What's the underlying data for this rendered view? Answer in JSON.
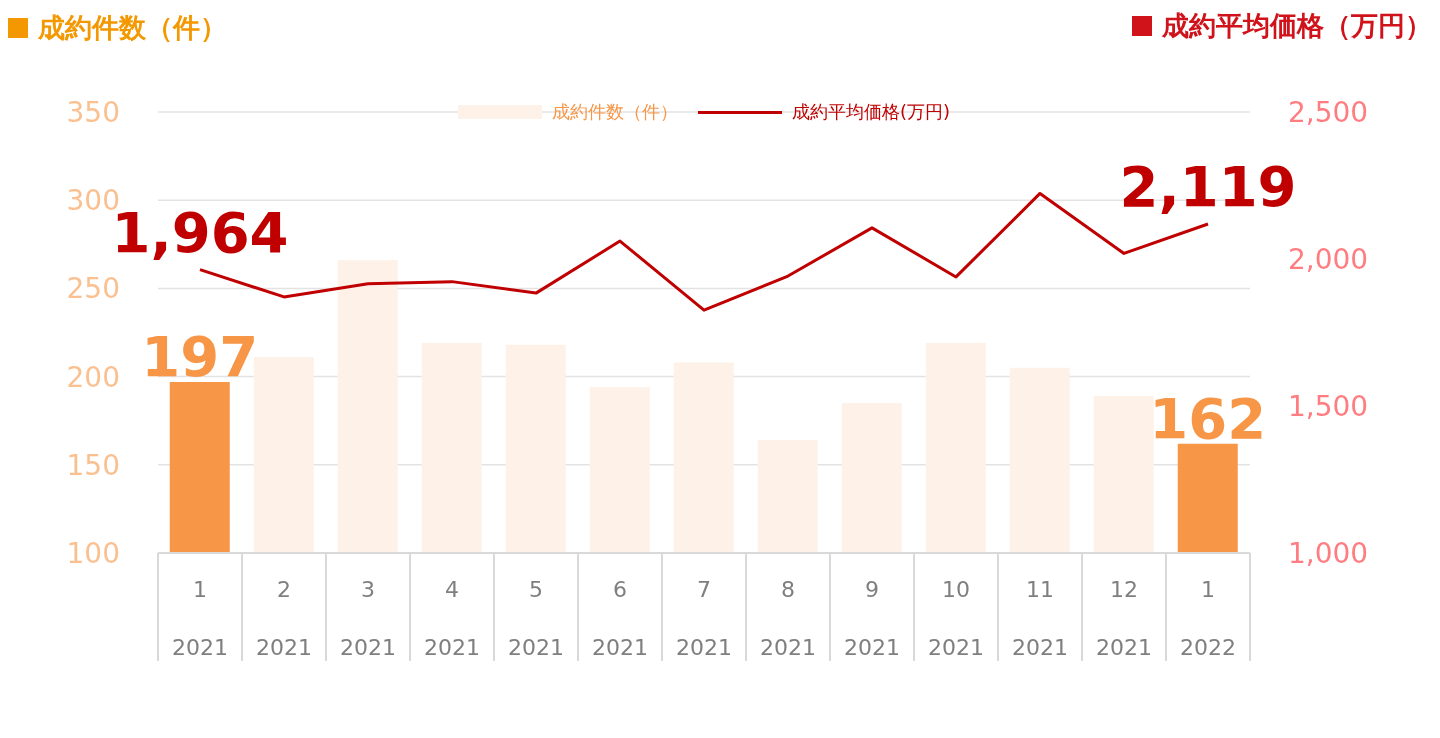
{
  "chart_data": {
    "type": "bar",
    "ylabel": "成約件数（件）",
    "y2label": "成約平均価格（万円）",
    "categories": [
      "1\n2021",
      "2\n2021",
      "3\n2021",
      "4\n2021",
      "5\n2021",
      "6\n2021",
      "7\n2021",
      "8\n2021",
      "9\n2021",
      "10\n2021",
      "11\n2021",
      "12\n2021",
      "1\n2022"
    ],
    "series": [
      {
        "name": "成約件数（件）",
        "color": "#fdf1e8",
        "colors": [
          "#f79646",
          "#fdf1e8",
          "#fdf1e8",
          "#fdf1e8",
          "#fdf1e8",
          "#fdf1e8",
          "#fdf1e8",
          "#fdf1e8",
          "#fdf1e8",
          "#fdf1e8",
          "#fdf1e8",
          "#fdf1e8",
          "#f79646"
        ],
        "values": [
          197,
          211,
          266,
          219,
          218,
          194,
          208,
          164,
          185,
          219,
          205,
          189,
          162
        ],
        "value_labels": [
          "197",
          null,
          null,
          null,
          null,
          null,
          null,
          null,
          null,
          null,
          null,
          null,
          "162"
        ]
      },
      {
        "name": "成約平均価格(万円)",
        "type": "line",
        "axis": "y2",
        "color": "#c00000",
        "values": [
          1964,
          1871,
          1916,
          1923,
          1884,
          2061,
          1826,
          1942,
          2106,
          1939,
          2223,
          2019,
          2119
        ],
        "value_labels": [
          "1,964",
          null,
          null,
          null,
          null,
          null,
          null,
          null,
          null,
          null,
          null,
          null,
          "2,119"
        ]
      }
    ],
    "ylim": [
      100,
      350
    ],
    "yticks": [
      100,
      150,
      200,
      250,
      300,
      350
    ],
    "y2lim": [
      1000,
      2500
    ],
    "y2ticks": [
      {
        "value": 1000,
        "label": "1,000"
      },
      {
        "value": 1500,
        "label": "1,500"
      },
      {
        "value": 2000,
        "label": "2,000"
      },
      {
        "value": 2500,
        "label": "2,500"
      }
    ],
    "grid": "y",
    "legend": "top",
    "marker": "none",
    "line_style": "solid"
  }
}
